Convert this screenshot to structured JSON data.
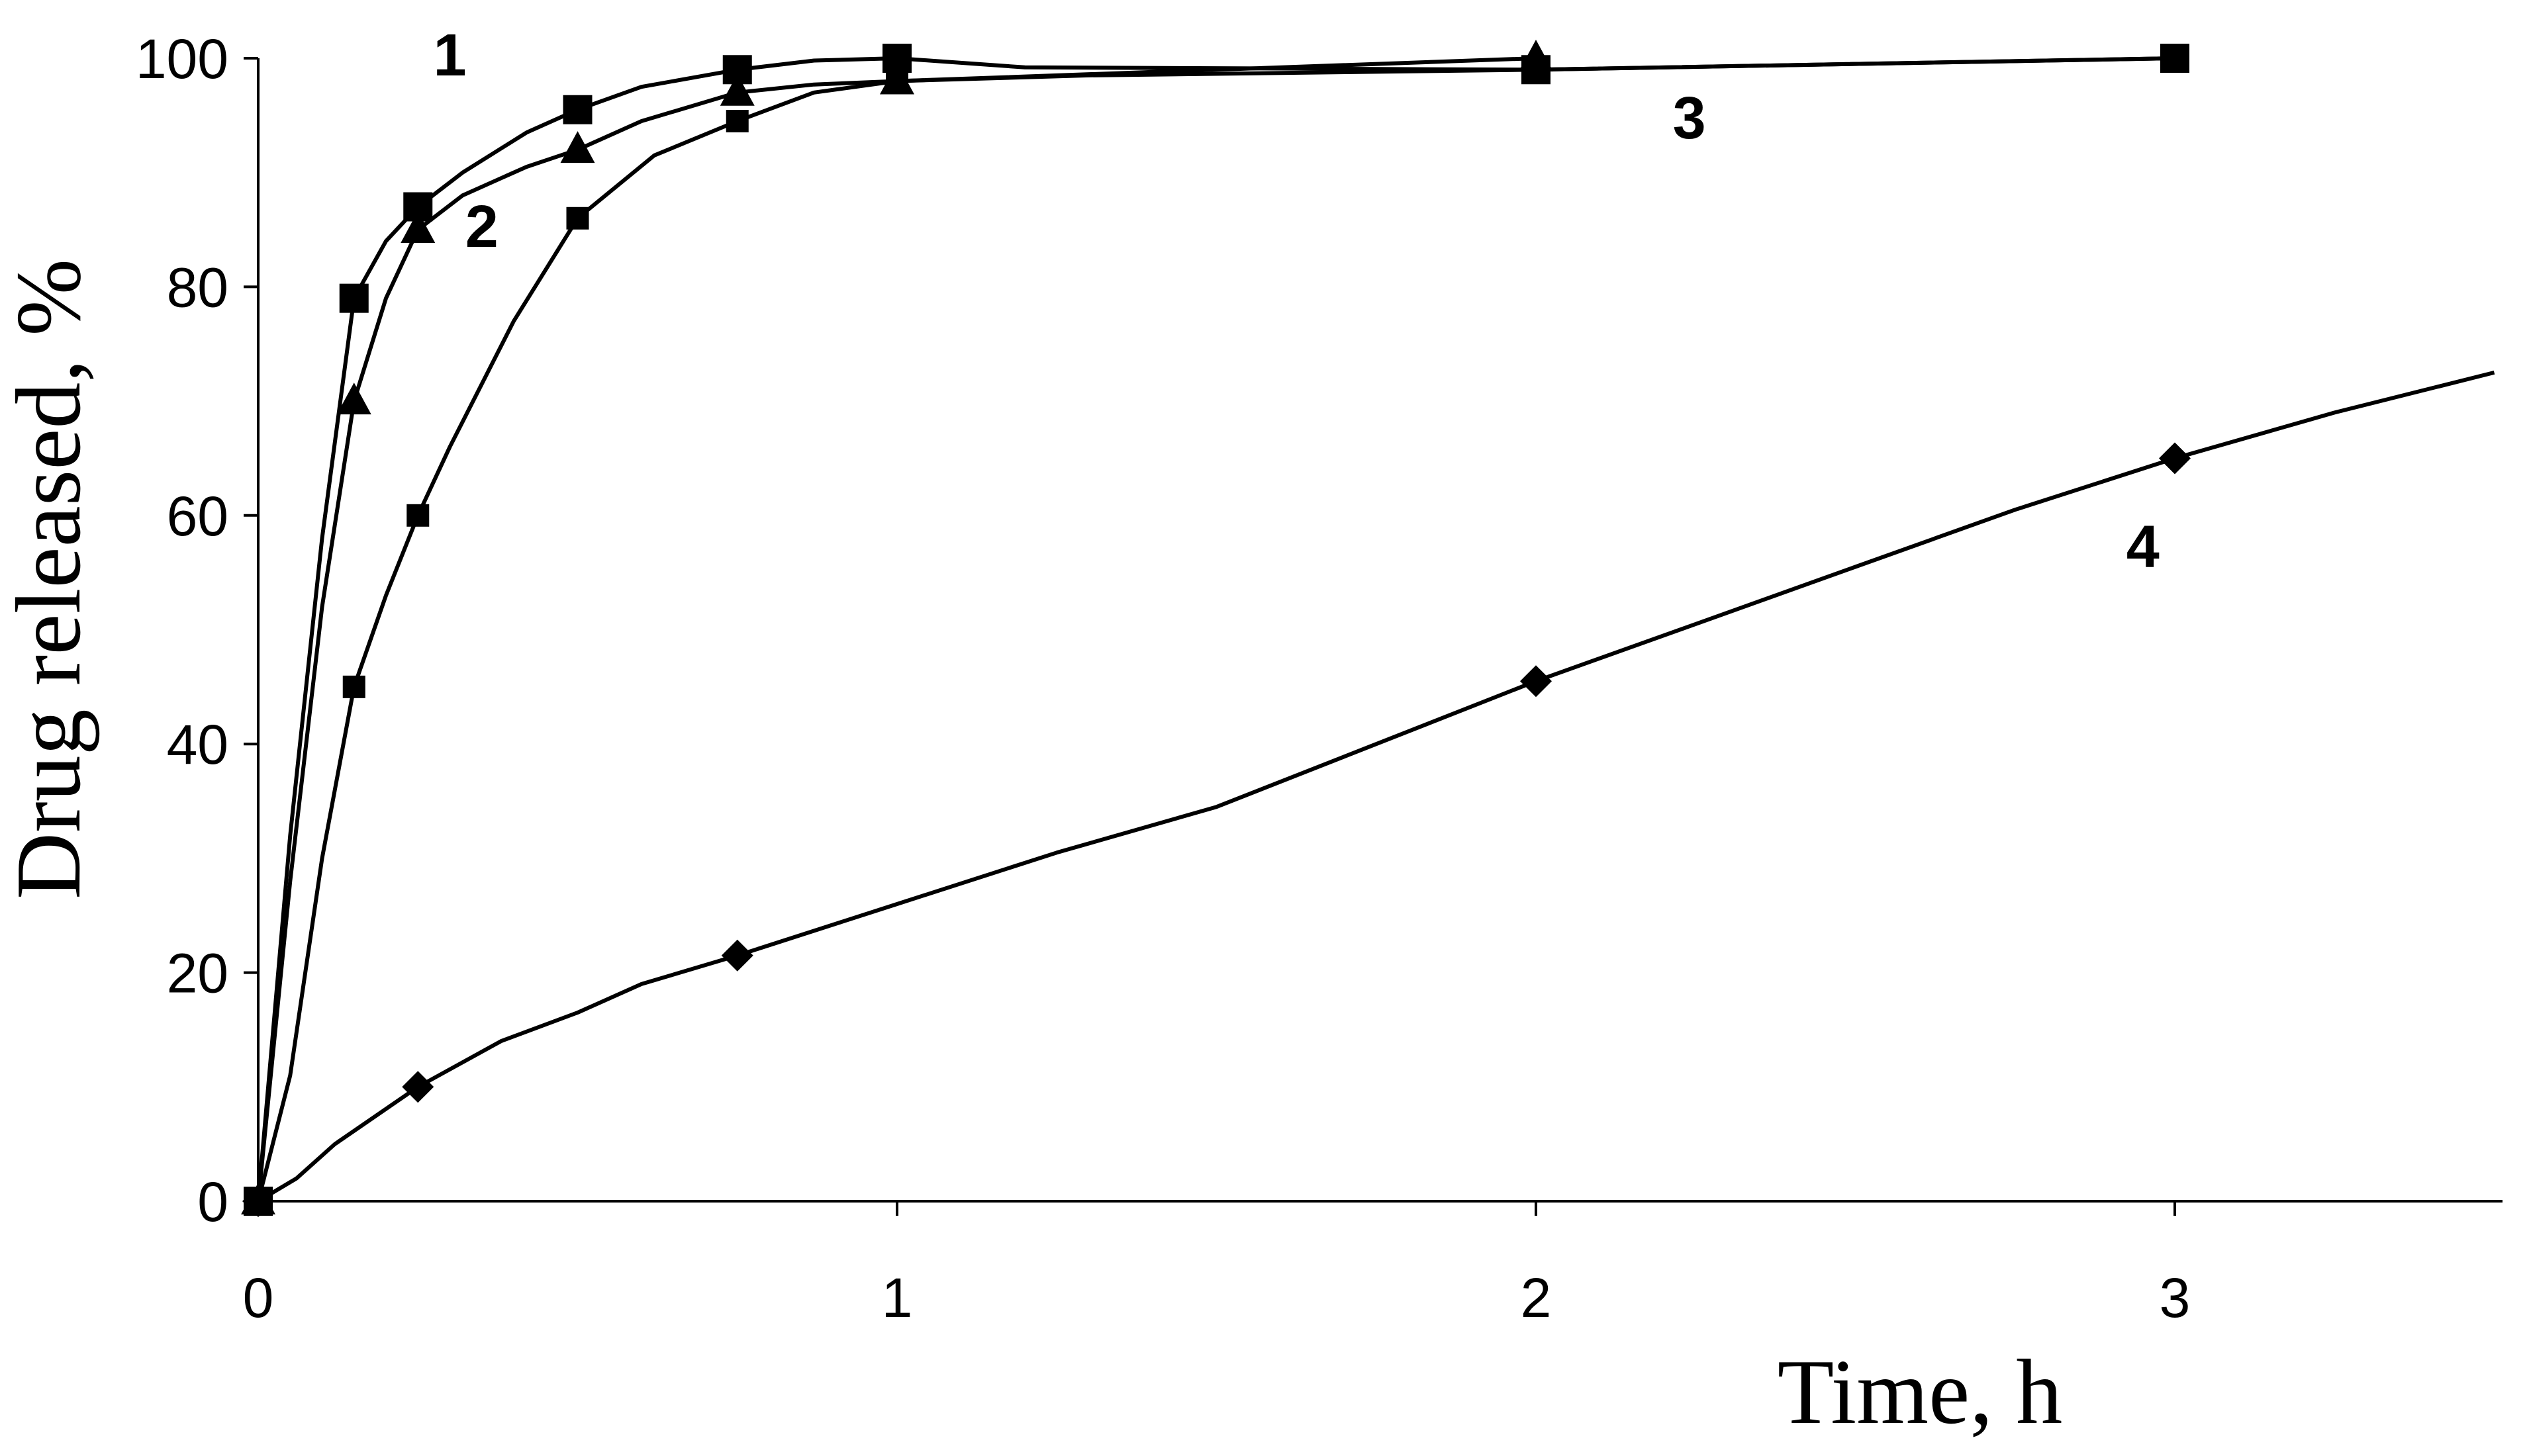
{
  "chart_data": {
    "type": "line",
    "title": "",
    "xlabel": "Time, h",
    "ylabel": "Drug released, %",
    "xlim": [
      0,
      3.5
    ],
    "ylim": [
      0,
      100
    ],
    "xticks": [
      0,
      1,
      2,
      3
    ],
    "yticks": [
      0,
      20,
      40,
      60,
      80,
      100
    ],
    "grid": false,
    "series": [
      {
        "label": "1",
        "marker": "square",
        "points": [
          [
            0,
            0
          ],
          [
            0.15,
            79
          ],
          [
            0.25,
            87
          ],
          [
            0.5,
            95.5
          ],
          [
            0.75,
            99
          ],
          [
            1,
            100
          ],
          [
            2,
            99
          ],
          [
            3,
            100
          ]
        ],
        "curve": [
          [
            0,
            0
          ],
          [
            0.05,
            32
          ],
          [
            0.1,
            58
          ],
          [
            0.15,
            79
          ],
          [
            0.2,
            84
          ],
          [
            0.25,
            87
          ],
          [
            0.32,
            90
          ],
          [
            0.42,
            93.5
          ],
          [
            0.5,
            95.5
          ],
          [
            0.6,
            97.5
          ],
          [
            0.75,
            99
          ],
          [
            0.87,
            99.8
          ],
          [
            1,
            100
          ],
          [
            1.2,
            99.2
          ],
          [
            2,
            99
          ],
          [
            3,
            100
          ]
        ]
      },
      {
        "label": "2",
        "marker": "triangle",
        "points": [
          [
            0,
            0
          ],
          [
            0.15,
            70
          ],
          [
            0.25,
            85
          ],
          [
            0.5,
            92
          ],
          [
            0.75,
            97
          ],
          [
            1,
            98
          ],
          [
            2,
            100
          ]
        ],
        "curve": [
          [
            0,
            0
          ],
          [
            0.05,
            28
          ],
          [
            0.1,
            52
          ],
          [
            0.15,
            70
          ],
          [
            0.2,
            79
          ],
          [
            0.25,
            85
          ],
          [
            0.32,
            88
          ],
          [
            0.42,
            90.5
          ],
          [
            0.5,
            92
          ],
          [
            0.6,
            94.5
          ],
          [
            0.75,
            97
          ],
          [
            0.87,
            97.7
          ],
          [
            1,
            98
          ],
          [
            1.5,
            99
          ],
          [
            2,
            100
          ]
        ]
      },
      {
        "label": "3",
        "marker": "square-small",
        "points": [
          [
            0,
            0
          ],
          [
            0.15,
            45
          ],
          [
            0.25,
            60
          ],
          [
            0.5,
            86
          ],
          [
            0.75,
            94.5
          ],
          [
            1,
            98
          ],
          [
            2,
            99
          ],
          [
            3,
            100
          ]
        ],
        "curve": [
          [
            0,
            0
          ],
          [
            0.05,
            11
          ],
          [
            0.1,
            30
          ],
          [
            0.15,
            45
          ],
          [
            0.2,
            53
          ],
          [
            0.25,
            60
          ],
          [
            0.3,
            66
          ],
          [
            0.4,
            77
          ],
          [
            0.5,
            86
          ],
          [
            0.62,
            91.5
          ],
          [
            0.75,
            94.5
          ],
          [
            0.87,
            97
          ],
          [
            1,
            98
          ],
          [
            1.3,
            98.5
          ],
          [
            2,
            99
          ],
          [
            3,
            100
          ]
        ]
      },
      {
        "label": "4",
        "marker": "diamond",
        "points": [
          [
            0,
            0
          ],
          [
            0.25,
            10
          ],
          [
            0.75,
            21.5
          ],
          [
            2,
            45.5
          ],
          [
            3,
            65
          ]
        ],
        "curve": [
          [
            0,
            0
          ],
          [
            0.06,
            2
          ],
          [
            0.12,
            5
          ],
          [
            0.25,
            10
          ],
          [
            0.38,
            14
          ],
          [
            0.5,
            16.5
          ],
          [
            0.6,
            19
          ],
          [
            0.75,
            21.5
          ],
          [
            1,
            26
          ],
          [
            1.25,
            30.5
          ],
          [
            1.5,
            34.5
          ],
          [
            1.75,
            40
          ],
          [
            2,
            45.5
          ],
          [
            2.25,
            50.5
          ],
          [
            2.5,
            55.5
          ],
          [
            2.75,
            60.5
          ],
          [
            3,
            65
          ],
          [
            3.25,
            69
          ],
          [
            3.5,
            72.5
          ]
        ]
      }
    ],
    "label_positions": [
      {
        "text": "1",
        "x": 0.3,
        "y": 98.5
      },
      {
        "text": "2",
        "x": 0.35,
        "y": 83.5
      },
      {
        "text": "3",
        "x": 2.24,
        "y": 93
      },
      {
        "text": "4",
        "x": 2.95,
        "y": 55.5
      }
    ]
  }
}
